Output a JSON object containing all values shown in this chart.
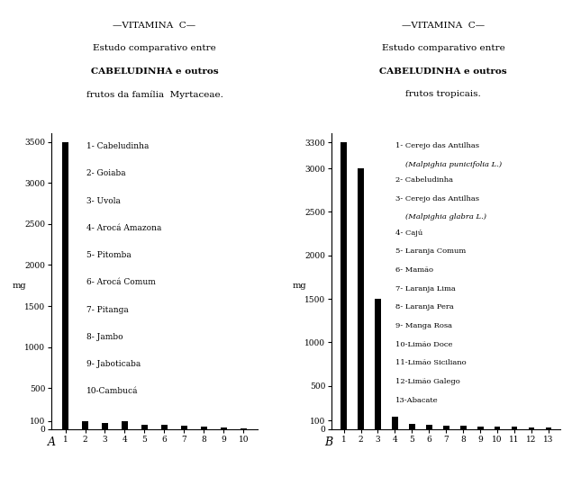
{
  "chart_a": {
    "title_line1": "—VITAMINA  C—",
    "title_line2": "Estudo comparativo entre",
    "title_line3": "CABELUDINHA e outros",
    "title_line4": "frutos da família  Myrtaceae.",
    "ylabel": "mg",
    "ab_label": "A",
    "values": [
      3500,
      100,
      80,
      100,
      60,
      60,
      40,
      30,
      20,
      10
    ],
    "x_labels": [
      "1",
      "2",
      "3",
      "4",
      "5",
      "6",
      "7",
      "8",
      "9",
      "10"
    ],
    "yticks": [
      0,
      100,
      500,
      1000,
      1500,
      2000,
      2500,
      3000,
      3500
    ],
    "ytick_labels": [
      "0",
      "100",
      "500",
      "1000",
      "1500",
      "2000",
      "2500",
      "3000",
      "3500"
    ],
    "ylim": [
      0,
      3600
    ],
    "legend_items": [
      {
        "text": "1- Cabeludinha",
        "italic": false
      },
      {
        "text": "2- Goiaba",
        "italic": false
      },
      {
        "text": "3- Uvola",
        "italic": false
      },
      {
        "text": "4- Arocá Amazona",
        "italic": false
      },
      {
        "text": "5- Pitomba",
        "italic": false
      },
      {
        "text": "6- Arocá Comum",
        "italic": false
      },
      {
        "text": "7- Pitanga",
        "italic": false
      },
      {
        "text": "8- Jambo",
        "italic": false
      },
      {
        "text": "9- Jaboticaba",
        "italic": false
      },
      {
        "text": "10-Cambucá",
        "italic": false
      }
    ]
  },
  "chart_b": {
    "title_line1": "—VITAMINA  C—",
    "title_line2": "Estudo comparativo entre",
    "title_line3": "CABELUDINHA e outros",
    "title_line4": "frutos tropicais.",
    "ylabel": "mg",
    "ab_label": "B",
    "values": [
      3300,
      3000,
      1500,
      150,
      60,
      50,
      45,
      40,
      35,
      30,
      28,
      25,
      20
    ],
    "x_labels": [
      "1",
      "2",
      "3",
      "4",
      "5",
      "6",
      "7",
      "8",
      "9",
      "10",
      "11",
      "12",
      "13"
    ],
    "yticks": [
      0,
      100,
      500,
      1000,
      1500,
      2000,
      2500,
      3000,
      3300
    ],
    "ytick_labels": [
      "0",
      "100",
      "500",
      "1000",
      "1500",
      "2000",
      "2500",
      "3000",
      "3300"
    ],
    "ylim": [
      0,
      3400
    ],
    "legend_items": [
      {
        "text": "1- Cerejo das Antilhas",
        "italic": false,
        "sub": "(Malpighia punicifolia L.)"
      },
      {
        "text": "2- Cabeludinha",
        "italic": false,
        "sub": ""
      },
      {
        "text": "3- Cerejo das Antilhas",
        "italic": false,
        "sub": "(Malpighia glabra L.)"
      },
      {
        "text": "4- Cajú",
        "italic": false,
        "sub": ""
      },
      {
        "text": "5- Laranja Comum",
        "italic": false,
        "sub": ""
      },
      {
        "text": "6- Mamão",
        "italic": false,
        "sub": ""
      },
      {
        "text": "7- Laranja Lima",
        "italic": false,
        "sub": ""
      },
      {
        "text": "8- Laranja Pera",
        "italic": false,
        "sub": ""
      },
      {
        "text": "9- Manga Rosa",
        "italic": false,
        "sub": ""
      },
      {
        "text": "10-Limão Doce",
        "italic": false,
        "sub": ""
      },
      {
        "text": "11-Limão Siciliano",
        "italic": false,
        "sub": ""
      },
      {
        "text": "12-Limão Galego",
        "italic": false,
        "sub": ""
      },
      {
        "text": "13-Abacate",
        "italic": false,
        "sub": ""
      }
    ]
  },
  "bg_color": "#ffffff",
  "bar_color": "#000000",
  "bar_width": 0.35,
  "title_fontsize": 7.5,
  "legend_fontsize_a": 6.5,
  "legend_fontsize_b": 6.0,
  "tick_fontsize": 6.5,
  "ylabel_fontsize": 7.0,
  "ab_label_fontsize": 9.0
}
